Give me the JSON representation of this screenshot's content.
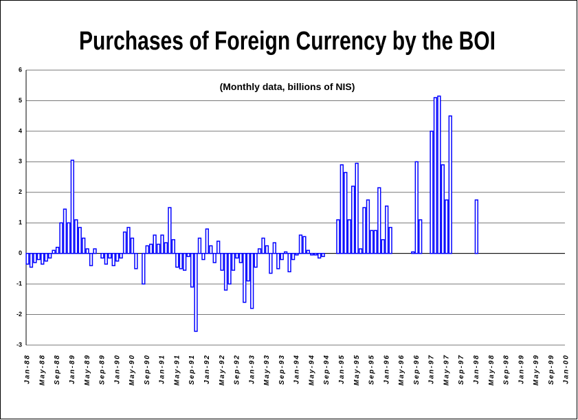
{
  "chart_data": {
    "type": "bar",
    "title": "Purchases of Foreign Currency by the BOI",
    "subtitle": "(Monthly data, billions of NIS)",
    "categories": [
      "Jan-88",
      null,
      null,
      null,
      "May-88",
      null,
      null,
      null,
      "Sep-88",
      null,
      null,
      null,
      "Jan-89",
      null,
      null,
      null,
      "May-89",
      null,
      null,
      null,
      "Sep-89",
      null,
      null,
      null,
      "Jan-90",
      null,
      null,
      null,
      "May-90",
      null,
      null,
      null,
      "Sep-90",
      null,
      null,
      null,
      "Jan-91",
      null,
      null,
      null,
      "May-91",
      null,
      null,
      null,
      "Sep-91",
      null,
      null,
      null,
      "Jan-92",
      null,
      null,
      null,
      "May-92",
      null,
      null,
      null,
      "Sep-92",
      null,
      null,
      null,
      "Jan-93",
      null,
      null,
      null,
      "May-93",
      null,
      null,
      null,
      "Sep-93",
      null,
      null,
      null,
      "Jan-94",
      null,
      null,
      null,
      "May-94",
      null,
      null,
      null,
      "Sep-94",
      null,
      null,
      null,
      "Jan-95",
      null,
      null,
      null,
      "May-95",
      null,
      null,
      null,
      "Sep-95",
      null,
      null,
      null,
      "Jan-96",
      null,
      null,
      null,
      "May-96",
      null,
      null,
      null,
      "Sep-96",
      null,
      null,
      null,
      "Jan-97",
      null,
      null,
      null,
      "May-97",
      null,
      null,
      null,
      "Sep-97",
      null,
      null,
      null,
      "Jan-98",
      null,
      null,
      null,
      "May-98",
      null,
      null,
      null,
      "Sep-98",
      null,
      null,
      null,
      "Jan-99",
      null,
      null,
      null,
      "May-99",
      null,
      null,
      null,
      "Sep-99",
      null,
      null,
      null,
      "Jan-00"
    ],
    "values": [
      -0.35,
      -0.45,
      -0.3,
      -0.2,
      -0.35,
      -0.25,
      -0.15,
      0.1,
      0.2,
      1.0,
      1.45,
      1.0,
      3.05,
      1.1,
      0.85,
      0.5,
      0.15,
      -0.4,
      0.15,
      0,
      -0.15,
      -0.35,
      -0.15,
      -0.4,
      -0.25,
      -0.15,
      0.7,
      0.85,
      0.5,
      -0.5,
      0,
      -1.0,
      0.25,
      0.3,
      0.6,
      0.3,
      0.6,
      0.35,
      1.5,
      0.45,
      -0.45,
      -0.5,
      -0.55,
      -0.1,
      -1.1,
      -2.55,
      0.5,
      -0.2,
      0.8,
      0.25,
      -0.3,
      0.4,
      -0.55,
      -1.2,
      -1.0,
      -0.55,
      -0.15,
      -0.3,
      -1.6,
      -0.9,
      -1.8,
      -0.45,
      0.15,
      0.5,
      0.25,
      -0.65,
      0.35,
      -0.5,
      -0.2,
      0.05,
      -0.6,
      -0.2,
      -0.05,
      0.6,
      0.55,
      0.1,
      -0.05,
      -0.05,
      -0.15,
      -0.1,
      0,
      null,
      null,
      1.1,
      2.9,
      2.65,
      1.1,
      2.2,
      2.95,
      0.15,
      1.5,
      1.75,
      0.75,
      0.75,
      2.15,
      0.45,
      1.55,
      0.85,
      null,
      null,
      null,
      null,
      null,
      0.05,
      3.0,
      1.1,
      null,
      null,
      4.0,
      5.1,
      5.15,
      2.9,
      1.75,
      4.5,
      null,
      null,
      null,
      null,
      null,
      null,
      1.75,
      null,
      null,
      null,
      null,
      null,
      null,
      null,
      null,
      null,
      null,
      null,
      null,
      null,
      null,
      null,
      null,
      null,
      null,
      null,
      null,
      null,
      null,
      null,
      null
    ],
    "color": "#0000ff",
    "ylim": [
      -3,
      6
    ],
    "yticks": [
      -3,
      -2,
      -1,
      0,
      1,
      2,
      3,
      4,
      5,
      6
    ],
    "grid": true
  }
}
